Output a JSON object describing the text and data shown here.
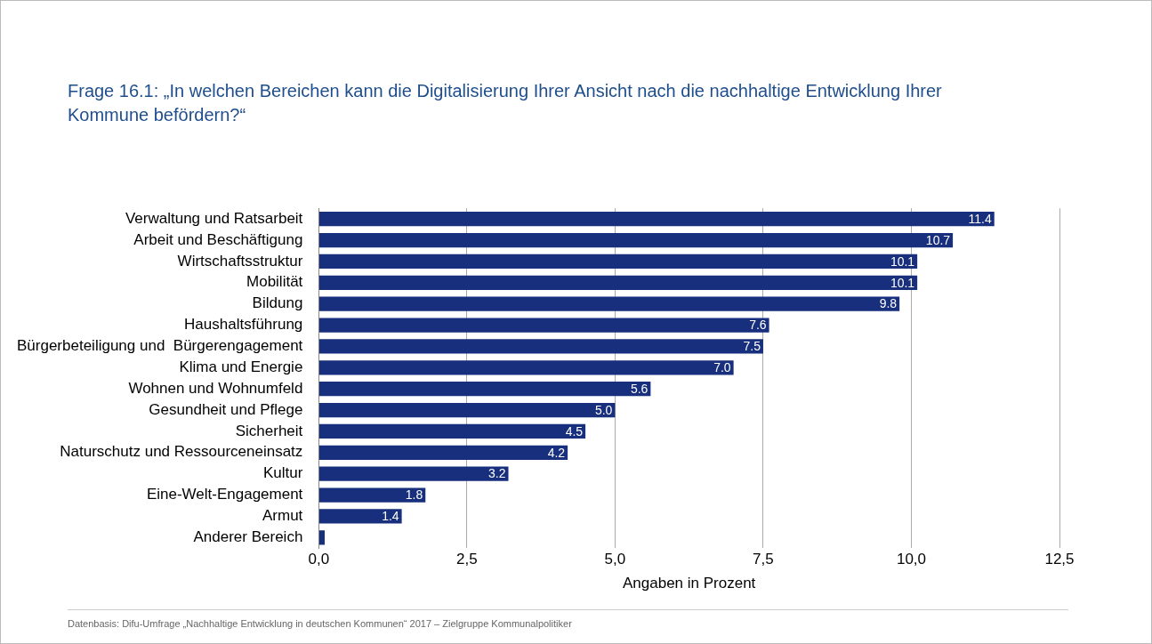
{
  "chart_data": {
    "type": "bar",
    "orientation": "horizontal",
    "title": "Frage 16.1: „In welchen Bereichen kann  die Digitalisierung Ihrer Ansicht nach die nachhaltige Entwicklung Ihrer Kommune befördern?“",
    "xlabel": "Angaben in Prozent",
    "categories": [
      "Verwaltung und Ratsarbeit",
      "Arbeit und Beschäftigung",
      "Wirtschaftsstruktur",
      "Mobilität",
      "Bildung",
      "Haushaltsführung",
      "Bürgerbeteiligung und  Bürgerengagement",
      "Klima und Energie",
      "Wohnen und Wohnumfeld",
      "Gesundheit und Pflege",
      "Sicherheit",
      "Naturschutz und Ressourceneinsatz",
      "Kultur",
      "Eine-Welt-Engagement",
      "Armut",
      "Anderer Bereich"
    ],
    "values": [
      11.4,
      10.7,
      10.1,
      10.1,
      9.8,
      7.6,
      7.5,
      7.0,
      5.6,
      5.0,
      4.5,
      4.2,
      3.2,
      1.8,
      1.4,
      0.1
    ],
    "value_labels": [
      "11.4",
      "10.7",
      "10.1",
      "10.1",
      "9.8",
      "7.6",
      "7.5",
      "7.0",
      "5.6",
      "5.0",
      "4.5",
      "4.2",
      "3.2",
      "1.8",
      "1.4",
      null
    ],
    "color": "#172f7c",
    "xlim": [
      0,
      12.5
    ],
    "xticks": [
      {
        "value": 0,
        "label": "0,0"
      },
      {
        "value": 2.5,
        "label": "2,5"
      },
      {
        "value": 5,
        "label": "5,0"
      },
      {
        "value": 7.5,
        "label": "7,5"
      },
      {
        "value": 10,
        "label": "10,0"
      },
      {
        "value": 12.5,
        "label": "12,5"
      }
    ],
    "grid": "x",
    "legend": false,
    "annotations": [
      "Datenbasis: Difu-Umfrage „Nachhaltige Entwicklung in deutschen Kommunen“ 2017 – Zielgruppe Kommunalpolitiker"
    ]
  }
}
